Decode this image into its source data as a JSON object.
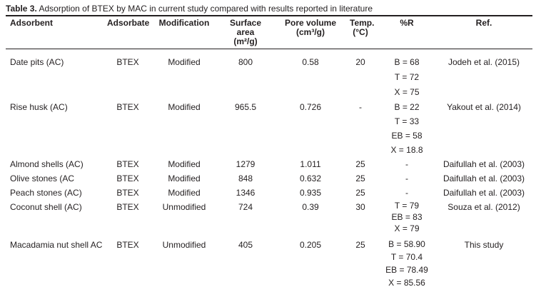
{
  "colors": {
    "text": "#231f20",
    "rule": "#231f20",
    "background": "#ffffff"
  },
  "caption": {
    "label": "Table 3.",
    "text": "Adsorption of BTEX by MAC in current study compared with results reported in literature"
  },
  "table": {
    "columns": [
      {
        "label": "Adsorbent",
        "sub": ""
      },
      {
        "label": "Adsorbate",
        "sub": ""
      },
      {
        "label": "Modification",
        "sub": ""
      },
      {
        "label": "Surface area",
        "sub": "(m²/g)"
      },
      {
        "label": "Pore volume",
        "sub": "(cm³/g)"
      },
      {
        "label": "Temp.",
        "sub": "(°C)"
      },
      {
        "label": "%R",
        "sub": ""
      },
      {
        "label": "Ref.",
        "sub": ""
      }
    ],
    "rows": [
      {
        "adsorbent": "Date pits (AC)",
        "adsorbate": "BTEX",
        "modification": "Modified",
        "surface_area": "800",
        "pore_volume": "0.58",
        "temp": "20",
        "percent_r": [
          "B = 68",
          "T = 72",
          "X = 75"
        ],
        "ref": "Jodeh et al. (2015)"
      },
      {
        "adsorbent": "Rise husk (AC)",
        "adsorbate": "BTEX",
        "modification": "Modified",
        "surface_area": "965.5",
        "pore_volume": "0.726",
        "temp": "-",
        "percent_r": [
          "B = 22",
          "T = 33",
          "EB = 58",
          "X = 18.8"
        ],
        "ref": "Yakout et al. (2014)"
      },
      {
        "adsorbent": "Almond shells (AC)",
        "adsorbate": "BTEX",
        "modification": "Modified",
        "surface_area": "1279",
        "pore_volume": "1.011",
        "temp": "25",
        "percent_r": [
          "-"
        ],
        "ref": "Daifullah et al. (2003)"
      },
      {
        "adsorbent": "Olive stones (AC",
        "adsorbate": "BTEX",
        "modification": "Modified",
        "surface_area": "848",
        "pore_volume": "0.632",
        "temp": "25",
        "percent_r": [
          "-"
        ],
        "ref": "Daifullah et al. (2003)"
      },
      {
        "adsorbent": "Peach stones (AC)",
        "adsorbate": "BTEX",
        "modification": "Modified",
        "surface_area": "1346",
        "pore_volume": "0.935",
        "temp": "25",
        "percent_r": [
          "-"
        ],
        "ref": "Daifullah et al. (2003)"
      },
      {
        "adsorbent": "Coconut shell (AC)",
        "adsorbate": "BTEX",
        "modification": "Unmodified",
        "surface_area": "724",
        "pore_volume": "0.39",
        "temp": "30",
        "percent_r": [
          "T = 79",
          "EB = 83",
          "X = 79"
        ],
        "ref": "Souza et al. (2012)"
      },
      {
        "adsorbent": "Macadamia nut shell AC",
        "adsorbate": "BTEX",
        "modification": "Unmodified",
        "surface_area": "405",
        "pore_volume": "0.205",
        "temp": "25",
        "percent_r": [
          "B = 58.90",
          "T = 70.4",
          "EB = 78.49",
          "X = 85.56"
        ],
        "ref": "This study"
      }
    ]
  }
}
